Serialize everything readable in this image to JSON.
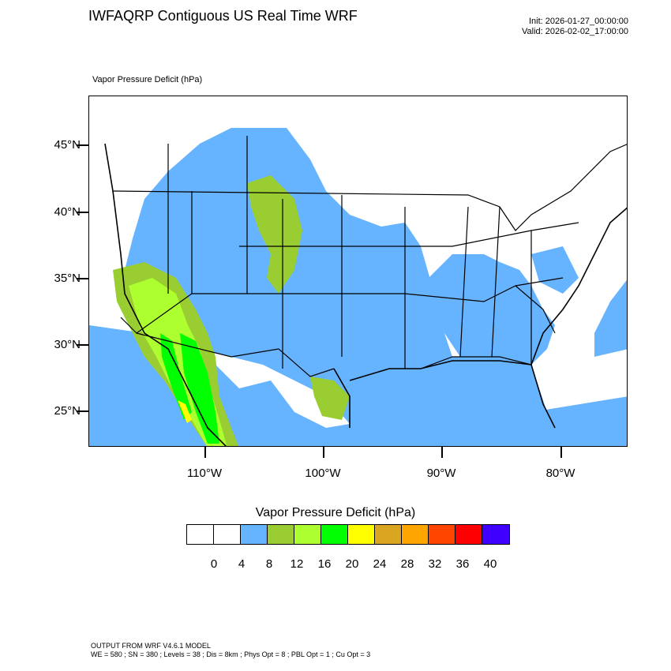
{
  "header": {
    "title": "IWFAQRP Contiguous US Real Time WRF",
    "init": "Init: 2026-01-27_00:00:00",
    "valid": "Valid: 2026-02-02_17:00:00"
  },
  "map": {
    "field_label": "Vapor Pressure Deficit   (hPa)",
    "lat_labels": [
      "45°N",
      "40°N",
      "35°N",
      "30°N",
      "25°N"
    ],
    "lon_labels": [
      "110°W",
      "100°W",
      "90°W",
      "80°W"
    ],
    "colors": {
      "ocean_blue": "#66b3ff",
      "olive": "#9acd32",
      "green_yellow": "#adff2f",
      "bright_green": "#00ff00",
      "yellow": "#ffff00"
    }
  },
  "colorbar": {
    "title": "Vapor Pressure Deficit  (hPa)",
    "colors": [
      "#ffffff",
      "#ffffff",
      "#66b3ff",
      "#9acd32",
      "#adff2f",
      "#00ff00",
      "#ffff00",
      "#daa520",
      "#ffa500",
      "#ff4500",
      "#ff0000",
      "#3f00ff"
    ],
    "labels": [
      "0",
      "4",
      "8",
      "12",
      "16",
      "20",
      "24",
      "28",
      "32",
      "36",
      "40"
    ]
  },
  "footer": {
    "line1": "OUTPUT FROM WRF V4.6.1 MODEL",
    "line2": "WE = 580 ; SN = 380 ; Levels = 38 ; Dis = 8km ; Phys Opt = 8 ; PBL Opt = 1 ; Cu Opt = 3"
  }
}
